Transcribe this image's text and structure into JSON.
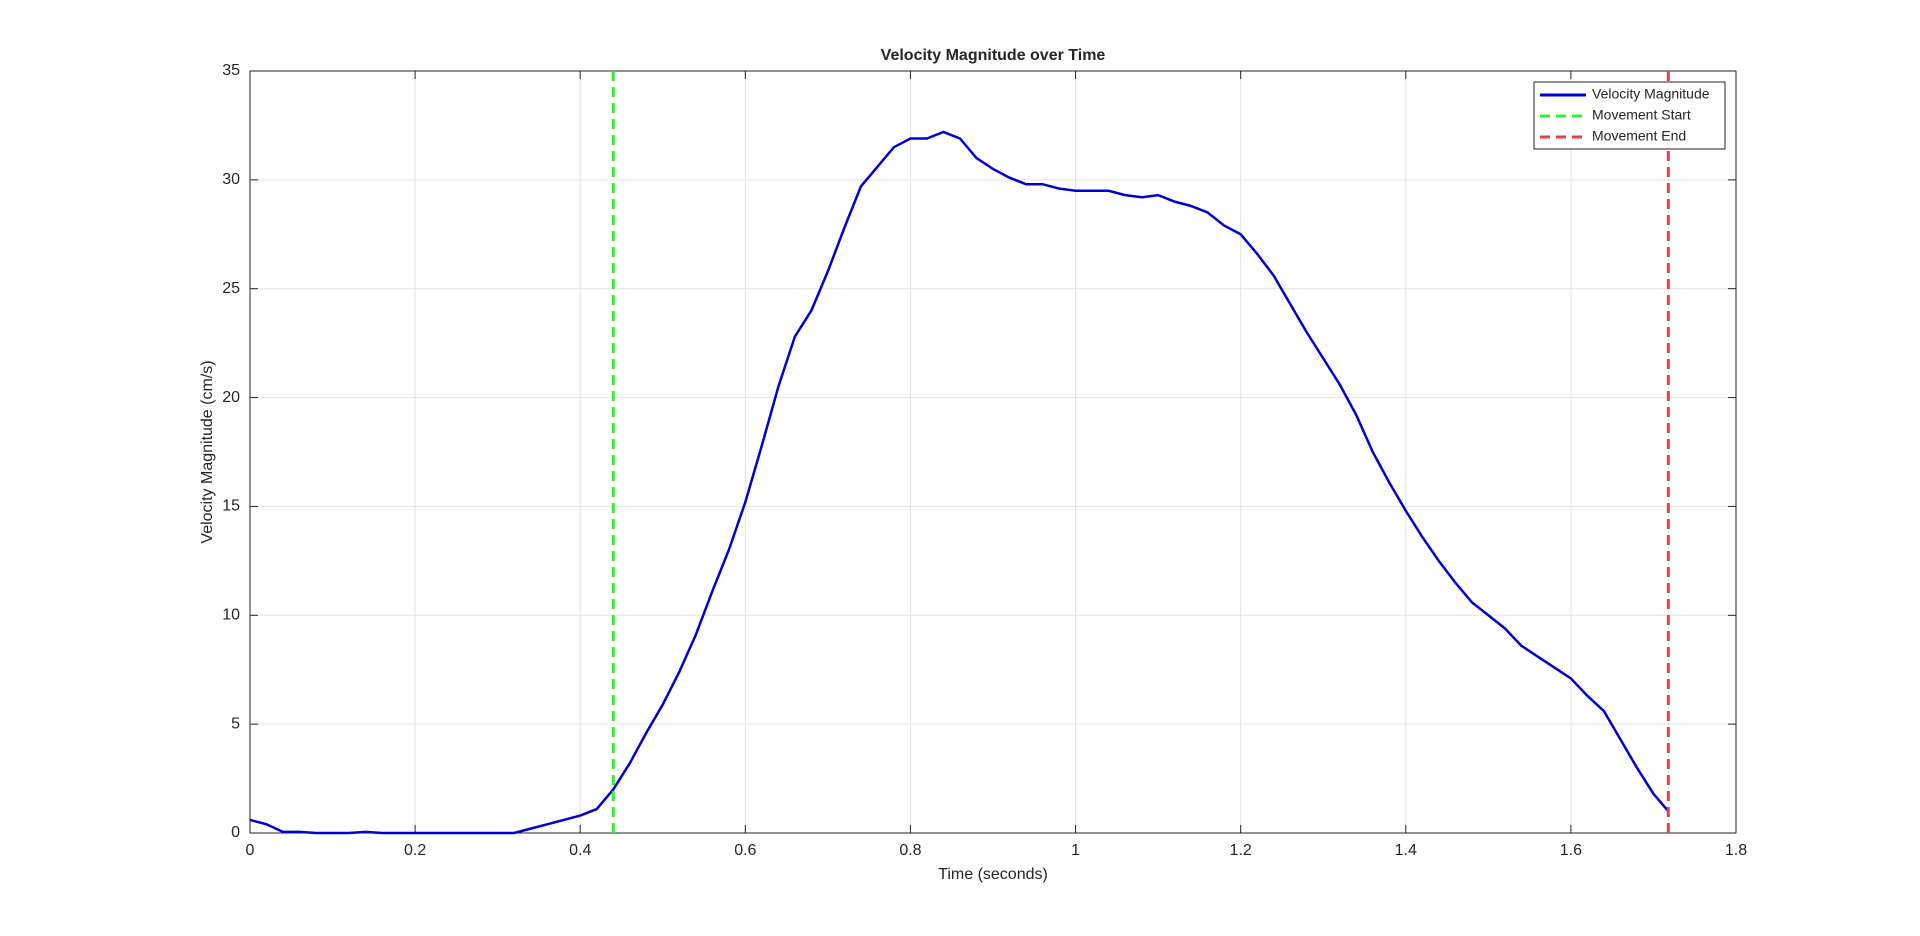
{
  "chart_data": {
    "type": "line",
    "title": "Velocity Magnitude over Time",
    "xlabel": "Time (seconds)",
    "ylabel": "Velocity Magnitude (cm/s)",
    "xlim": [
      0,
      1.8
    ],
    "xticks": [
      0,
      0.2,
      0.4,
      0.6,
      0.8,
      1,
      1.2,
      1.4,
      1.6,
      1.8
    ],
    "ylim": [
      0,
      35
    ],
    "yticks": [
      0,
      5,
      10,
      15,
      20,
      25,
      30,
      35
    ],
    "grid": true,
    "legend": "upper-right",
    "series": [
      {
        "name": "Velocity Magnitude",
        "color": "#0000d0",
        "x": [
          0,
          0.02,
          0.04,
          0.06,
          0.08,
          0.1,
          0.12,
          0.14,
          0.16,
          0.18,
          0.2,
          0.22,
          0.24,
          0.26,
          0.28,
          0.3,
          0.32,
          0.34,
          0.36,
          0.38,
          0.4,
          0.42,
          0.44,
          0.46,
          0.48,
          0.5,
          0.52,
          0.54,
          0.56,
          0.58,
          0.6,
          0.62,
          0.64,
          0.66,
          0.68,
          0.7,
          0.72,
          0.74,
          0.76,
          0.78,
          0.8,
          0.82,
          0.84,
          0.86,
          0.88,
          0.9,
          0.92,
          0.94,
          0.96,
          0.98,
          1,
          1.02,
          1.04,
          1.06,
          1.08,
          1.1,
          1.12,
          1.14,
          1.16,
          1.18,
          1.2,
          1.22,
          1.24,
          1.26,
          1.28,
          1.3,
          1.32,
          1.34,
          1.36,
          1.38,
          1.4,
          1.42,
          1.44,
          1.46,
          1.48,
          1.5,
          1.52,
          1.54,
          1.56,
          1.58,
          1.6,
          1.62,
          1.64,
          1.66,
          1.68,
          1.7,
          1.718
        ],
        "values": [
          0.6,
          0.4,
          0.05,
          0.05,
          0,
          0,
          0,
          0.05,
          0,
          0,
          0,
          0,
          0,
          0,
          0,
          0,
          0,
          0.2,
          0.4,
          0.6,
          0.8,
          1.1,
          2.0,
          3.2,
          4.6,
          5.9,
          7.4,
          9.1,
          11.1,
          13.0,
          15.2,
          17.8,
          20.5,
          22.8,
          24.0,
          25.8,
          27.8,
          29.7,
          30.6,
          31.5,
          31.9,
          31.9,
          32.2,
          31.9,
          31.0,
          30.5,
          30.1,
          29.8,
          29.8,
          29.6,
          29.5,
          29.5,
          29.5,
          29.3,
          29.2,
          29.3,
          29.0,
          28.8,
          28.5,
          27.9,
          27.5,
          26.6,
          25.6,
          24.3,
          23.0,
          21.8,
          20.6,
          19.2,
          17.5,
          16.1,
          14.8,
          13.6,
          12.5,
          11.5,
          10.6,
          10.0,
          9.4,
          8.6,
          8.1,
          7.6,
          7.1,
          6.3,
          5.6,
          4.3,
          3.0,
          1.8,
          1.0
        ]
      },
      {
        "name": "Movement Start",
        "color": "#33ee33",
        "vline": 0.44
      },
      {
        "name": "Movement End",
        "color": "#e84040",
        "vline": 1.718
      }
    ]
  }
}
